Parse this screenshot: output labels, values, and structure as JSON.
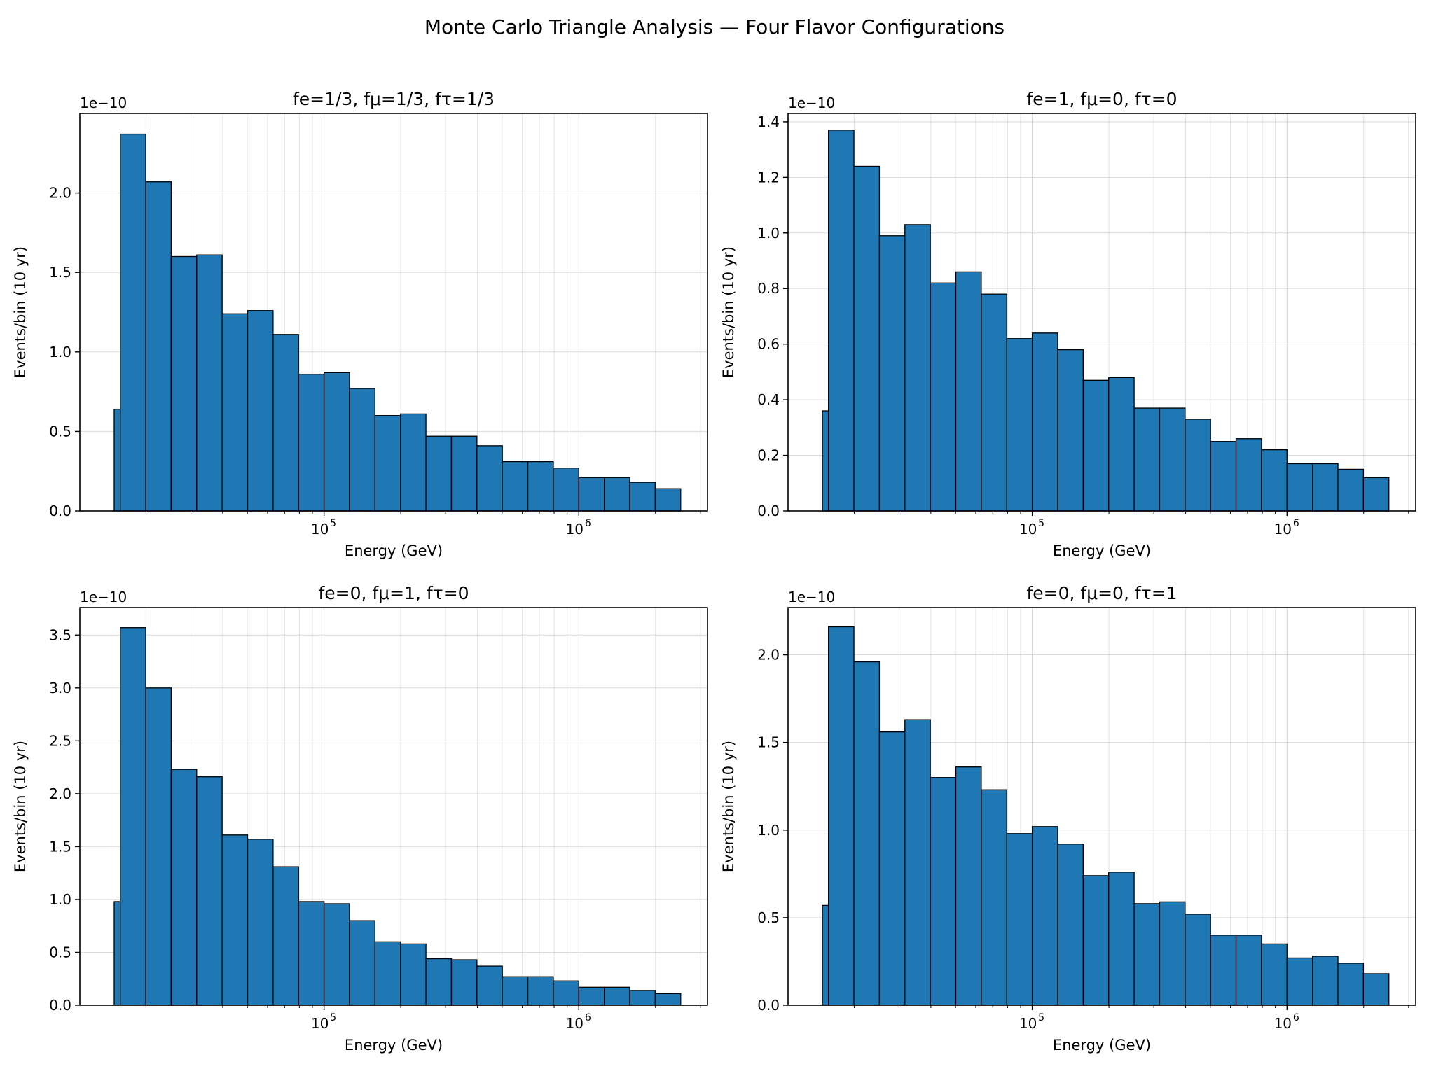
{
  "figure_title": "Monte Carlo Triangle Analysis — Four Flavor Configurations",
  "colors": {
    "bar_fill": "#1f77b4",
    "bar_edge": "#000000",
    "grid": "#b0b0b0"
  },
  "chart_data": [
    {
      "type": "bar",
      "title": "fe=1/3, fμ=1/3, fτ=1/3",
      "xlabel": "Energy (GeV)",
      "ylabel": "Events/bin (10 yr)",
      "y_scale_label": "1e−10",
      "x_scale": "log",
      "xlim": [
        11000,
        3200000
      ],
      "ylim": [
        0,
        2.5
      ],
      "yticks": [
        0.0,
        0.5,
        1.0,
        1.5,
        2.0
      ],
      "ytick_labels": [
        "0.0",
        "0.5",
        "1.0",
        "1.5",
        "2.0"
      ],
      "xticks": [
        100000,
        1000000
      ],
      "xtick_labels": [
        "10",
        "10"
      ],
      "xtick_exponents": [
        "5",
        "6"
      ],
      "grid": true,
      "bin_edges": [
        15000,
        15848,
        19953,
        25119,
        31623,
        39811,
        50119,
        63096,
        79433,
        100000,
        125893,
        158489,
        199526,
        251189,
        316228,
        398107,
        501187,
        630957,
        794328,
        1000000,
        1258925,
        1584893,
        1995262,
        2511886
      ],
      "values": [
        0.64,
        2.37,
        2.07,
        1.6,
        1.61,
        1.24,
        1.26,
        1.11,
        0.86,
        0.87,
        0.77,
        0.6,
        0.61,
        0.47,
        0.47,
        0.41,
        0.31,
        0.31,
        0.27,
        0.21,
        0.21,
        0.18,
        0.14
      ]
    },
    {
      "type": "bar",
      "title": "fe=1, fμ=0, fτ=0",
      "xlabel": "Energy (GeV)",
      "ylabel": "Events/bin (10 yr)",
      "y_scale_label": "1e−10",
      "x_scale": "log",
      "xlim": [
        11000,
        3200000
      ],
      "ylim": [
        0,
        1.43
      ],
      "yticks": [
        0.0,
        0.2,
        0.4,
        0.6,
        0.8,
        1.0,
        1.2,
        1.4
      ],
      "ytick_labels": [
        "0.0",
        "0.2",
        "0.4",
        "0.6",
        "0.8",
        "1.0",
        "1.2",
        "1.4"
      ],
      "xticks": [
        100000,
        1000000
      ],
      "xtick_labels": [
        "10",
        "10"
      ],
      "xtick_exponents": [
        "5",
        "6"
      ],
      "grid": true,
      "bin_edges": [
        15000,
        15848,
        19953,
        25119,
        31623,
        39811,
        50119,
        63096,
        79433,
        100000,
        125893,
        158489,
        199526,
        251189,
        316228,
        398107,
        501187,
        630957,
        794328,
        1000000,
        1258925,
        1584893,
        1995262,
        2511886
      ],
      "values": [
        0.36,
        1.37,
        1.24,
        0.99,
        1.03,
        0.82,
        0.86,
        0.78,
        0.62,
        0.64,
        0.58,
        0.47,
        0.48,
        0.37,
        0.37,
        0.33,
        0.25,
        0.26,
        0.22,
        0.17,
        0.17,
        0.15,
        0.12
      ]
    },
    {
      "type": "bar",
      "title": "fe=0, fμ=1, fτ=0",
      "xlabel": "Energy (GeV)",
      "ylabel": "Events/bin (10 yr)",
      "y_scale_label": "1e−10",
      "x_scale": "log",
      "xlim": [
        11000,
        3200000
      ],
      "ylim": [
        0,
        3.76
      ],
      "yticks": [
        0.0,
        0.5,
        1.0,
        1.5,
        2.0,
        2.5,
        3.0,
        3.5
      ],
      "ytick_labels": [
        "0.0",
        "0.5",
        "1.0",
        "1.5",
        "2.0",
        "2.5",
        "3.0",
        "3.5"
      ],
      "xticks": [
        100000,
        1000000
      ],
      "xtick_labels": [
        "10",
        "10"
      ],
      "xtick_exponents": [
        "5",
        "6"
      ],
      "grid": true,
      "bin_edges": [
        15000,
        15848,
        19953,
        25119,
        31623,
        39811,
        50119,
        63096,
        79433,
        100000,
        125893,
        158489,
        199526,
        251189,
        316228,
        398107,
        501187,
        630957,
        794328,
        1000000,
        1258925,
        1584893,
        1995262,
        2511886
      ],
      "values": [
        0.98,
        3.57,
        3.0,
        2.23,
        2.16,
        1.61,
        1.57,
        1.31,
        0.98,
        0.96,
        0.8,
        0.6,
        0.58,
        0.44,
        0.43,
        0.37,
        0.27,
        0.27,
        0.23,
        0.17,
        0.17,
        0.14,
        0.11
      ]
    },
    {
      "type": "bar",
      "title": "fe=0, fμ=0, fτ=1",
      "xlabel": "Energy (GeV)",
      "ylabel": "Events/bin (10 yr)",
      "y_scale_label": "1e−10",
      "x_scale": "log",
      "xlim": [
        11000,
        3200000
      ],
      "ylim": [
        0,
        2.27
      ],
      "yticks": [
        0.0,
        0.5,
        1.0,
        1.5,
        2.0
      ],
      "ytick_labels": [
        "0.0",
        "0.5",
        "1.0",
        "1.5",
        "2.0"
      ],
      "xticks": [
        100000,
        1000000
      ],
      "xtick_labels": [
        "10",
        "10"
      ],
      "xtick_exponents": [
        "5",
        "6"
      ],
      "grid": true,
      "bin_edges": [
        15000,
        15848,
        19953,
        25119,
        31623,
        39811,
        50119,
        63096,
        79433,
        100000,
        125893,
        158489,
        199526,
        251189,
        316228,
        398107,
        501187,
        630957,
        794328,
        1000000,
        1258925,
        1584893,
        1995262,
        2511886
      ],
      "values": [
        0.57,
        2.16,
        1.96,
        1.56,
        1.63,
        1.3,
        1.36,
        1.23,
        0.98,
        1.02,
        0.92,
        0.74,
        0.76,
        0.58,
        0.59,
        0.52,
        0.4,
        0.4,
        0.35,
        0.27,
        0.28,
        0.24,
        0.18
      ]
    }
  ]
}
